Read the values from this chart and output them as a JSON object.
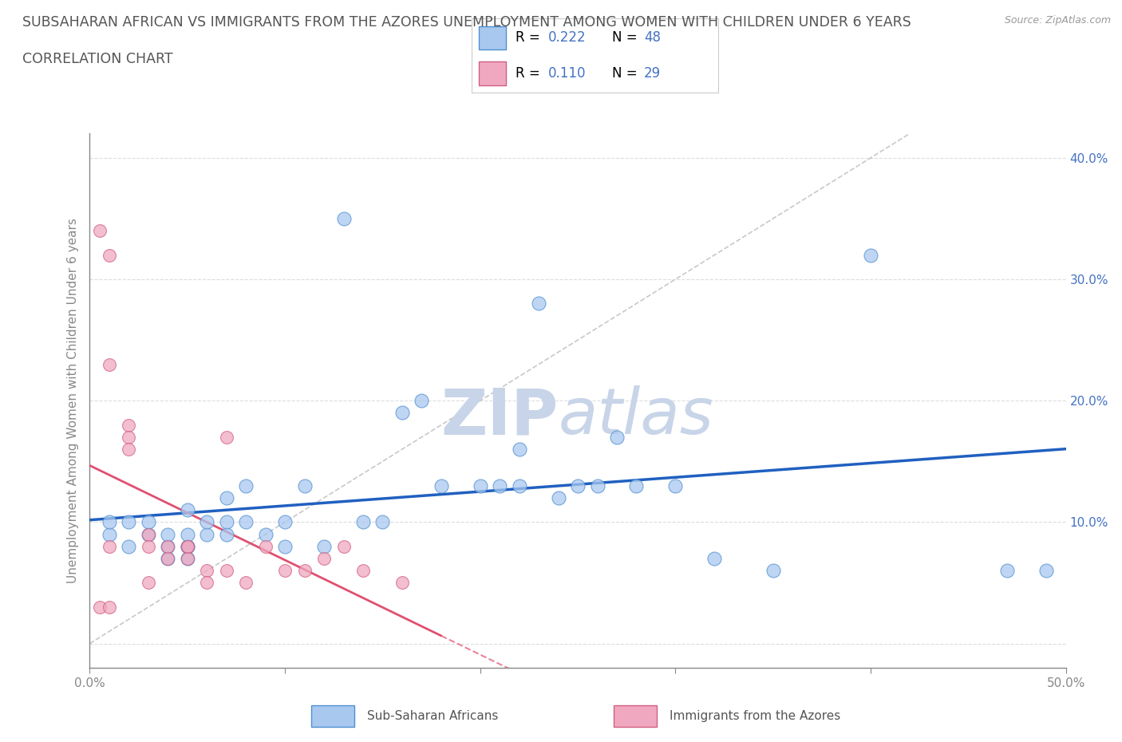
{
  "title_line1": "SUBSAHARAN AFRICAN VS IMMIGRANTS FROM THE AZORES UNEMPLOYMENT AMONG WOMEN WITH CHILDREN UNDER 6 YEARS",
  "title_line2": "CORRELATION CHART",
  "source": "Source: ZipAtlas.com",
  "ylabel": "Unemployment Among Women with Children Under 6 years",
  "x_min": 0.0,
  "x_max": 0.5,
  "y_min": -0.02,
  "y_max": 0.42,
  "x_ticks": [
    0.0,
    0.1,
    0.2,
    0.3,
    0.4,
    0.5
  ],
  "y_ticks": [
    0.0,
    0.1,
    0.2,
    0.3,
    0.4
  ],
  "y_tick_labels_right": [
    "",
    "10.0%",
    "20.0%",
    "30.0%",
    "40.0%"
  ],
  "blue_color": "#A8C8F0",
  "pink_color": "#F0A8C0",
  "blue_edge_color": "#5090D0",
  "pink_edge_color": "#D06080",
  "blue_trend_color": "#2060C0",
  "pink_trend_color": "#E05070",
  "ref_line_color": "#BBBBBB",
  "legend_R1": "0.222",
  "legend_N1": "48",
  "legend_R2": "0.110",
  "legend_N2": "29",
  "label1": "Sub-Saharan Africans",
  "label2": "Immigrants from the Azores",
  "blue_scatter_x": [
    0.01,
    0.01,
    0.02,
    0.02,
    0.03,
    0.03,
    0.04,
    0.04,
    0.04,
    0.05,
    0.05,
    0.05,
    0.05,
    0.05,
    0.06,
    0.06,
    0.07,
    0.07,
    0.07,
    0.08,
    0.08,
    0.09,
    0.1,
    0.1,
    0.11,
    0.12,
    0.13,
    0.14,
    0.15,
    0.16,
    0.17,
    0.18,
    0.2,
    0.21,
    0.22,
    0.22,
    0.23,
    0.24,
    0.25,
    0.26,
    0.27,
    0.28,
    0.3,
    0.32,
    0.35,
    0.4,
    0.47,
    0.49
  ],
  "blue_scatter_y": [
    0.09,
    0.1,
    0.08,
    0.1,
    0.09,
    0.1,
    0.07,
    0.08,
    0.09,
    0.07,
    0.08,
    0.08,
    0.09,
    0.11,
    0.09,
    0.1,
    0.09,
    0.1,
    0.12,
    0.1,
    0.13,
    0.09,
    0.08,
    0.1,
    0.13,
    0.08,
    0.35,
    0.1,
    0.1,
    0.19,
    0.2,
    0.13,
    0.13,
    0.13,
    0.13,
    0.16,
    0.28,
    0.12,
    0.13,
    0.13,
    0.17,
    0.13,
    0.13,
    0.07,
    0.06,
    0.32,
    0.06,
    0.06
  ],
  "pink_scatter_x": [
    0.005,
    0.005,
    0.01,
    0.01,
    0.01,
    0.01,
    0.02,
    0.02,
    0.02,
    0.03,
    0.03,
    0.03,
    0.04,
    0.04,
    0.05,
    0.05,
    0.05,
    0.06,
    0.06,
    0.07,
    0.07,
    0.08,
    0.09,
    0.1,
    0.11,
    0.12,
    0.13,
    0.14,
    0.16
  ],
  "pink_scatter_y": [
    0.34,
    0.03,
    0.32,
    0.23,
    0.08,
    0.03,
    0.18,
    0.17,
    0.16,
    0.09,
    0.08,
    0.05,
    0.08,
    0.07,
    0.08,
    0.08,
    0.07,
    0.06,
    0.05,
    0.17,
    0.06,
    0.05,
    0.08,
    0.06,
    0.06,
    0.07,
    0.08,
    0.06,
    0.05
  ],
  "watermark_top": "ZIP",
  "watermark_bottom": "atlas",
  "watermark_color": "#C8D4E8",
  "background_color": "#FFFFFF",
  "grid_color": "#DDDDDD",
  "title_color": "#555555",
  "axis_color": "#888888",
  "r_value_color": "#4472C4"
}
